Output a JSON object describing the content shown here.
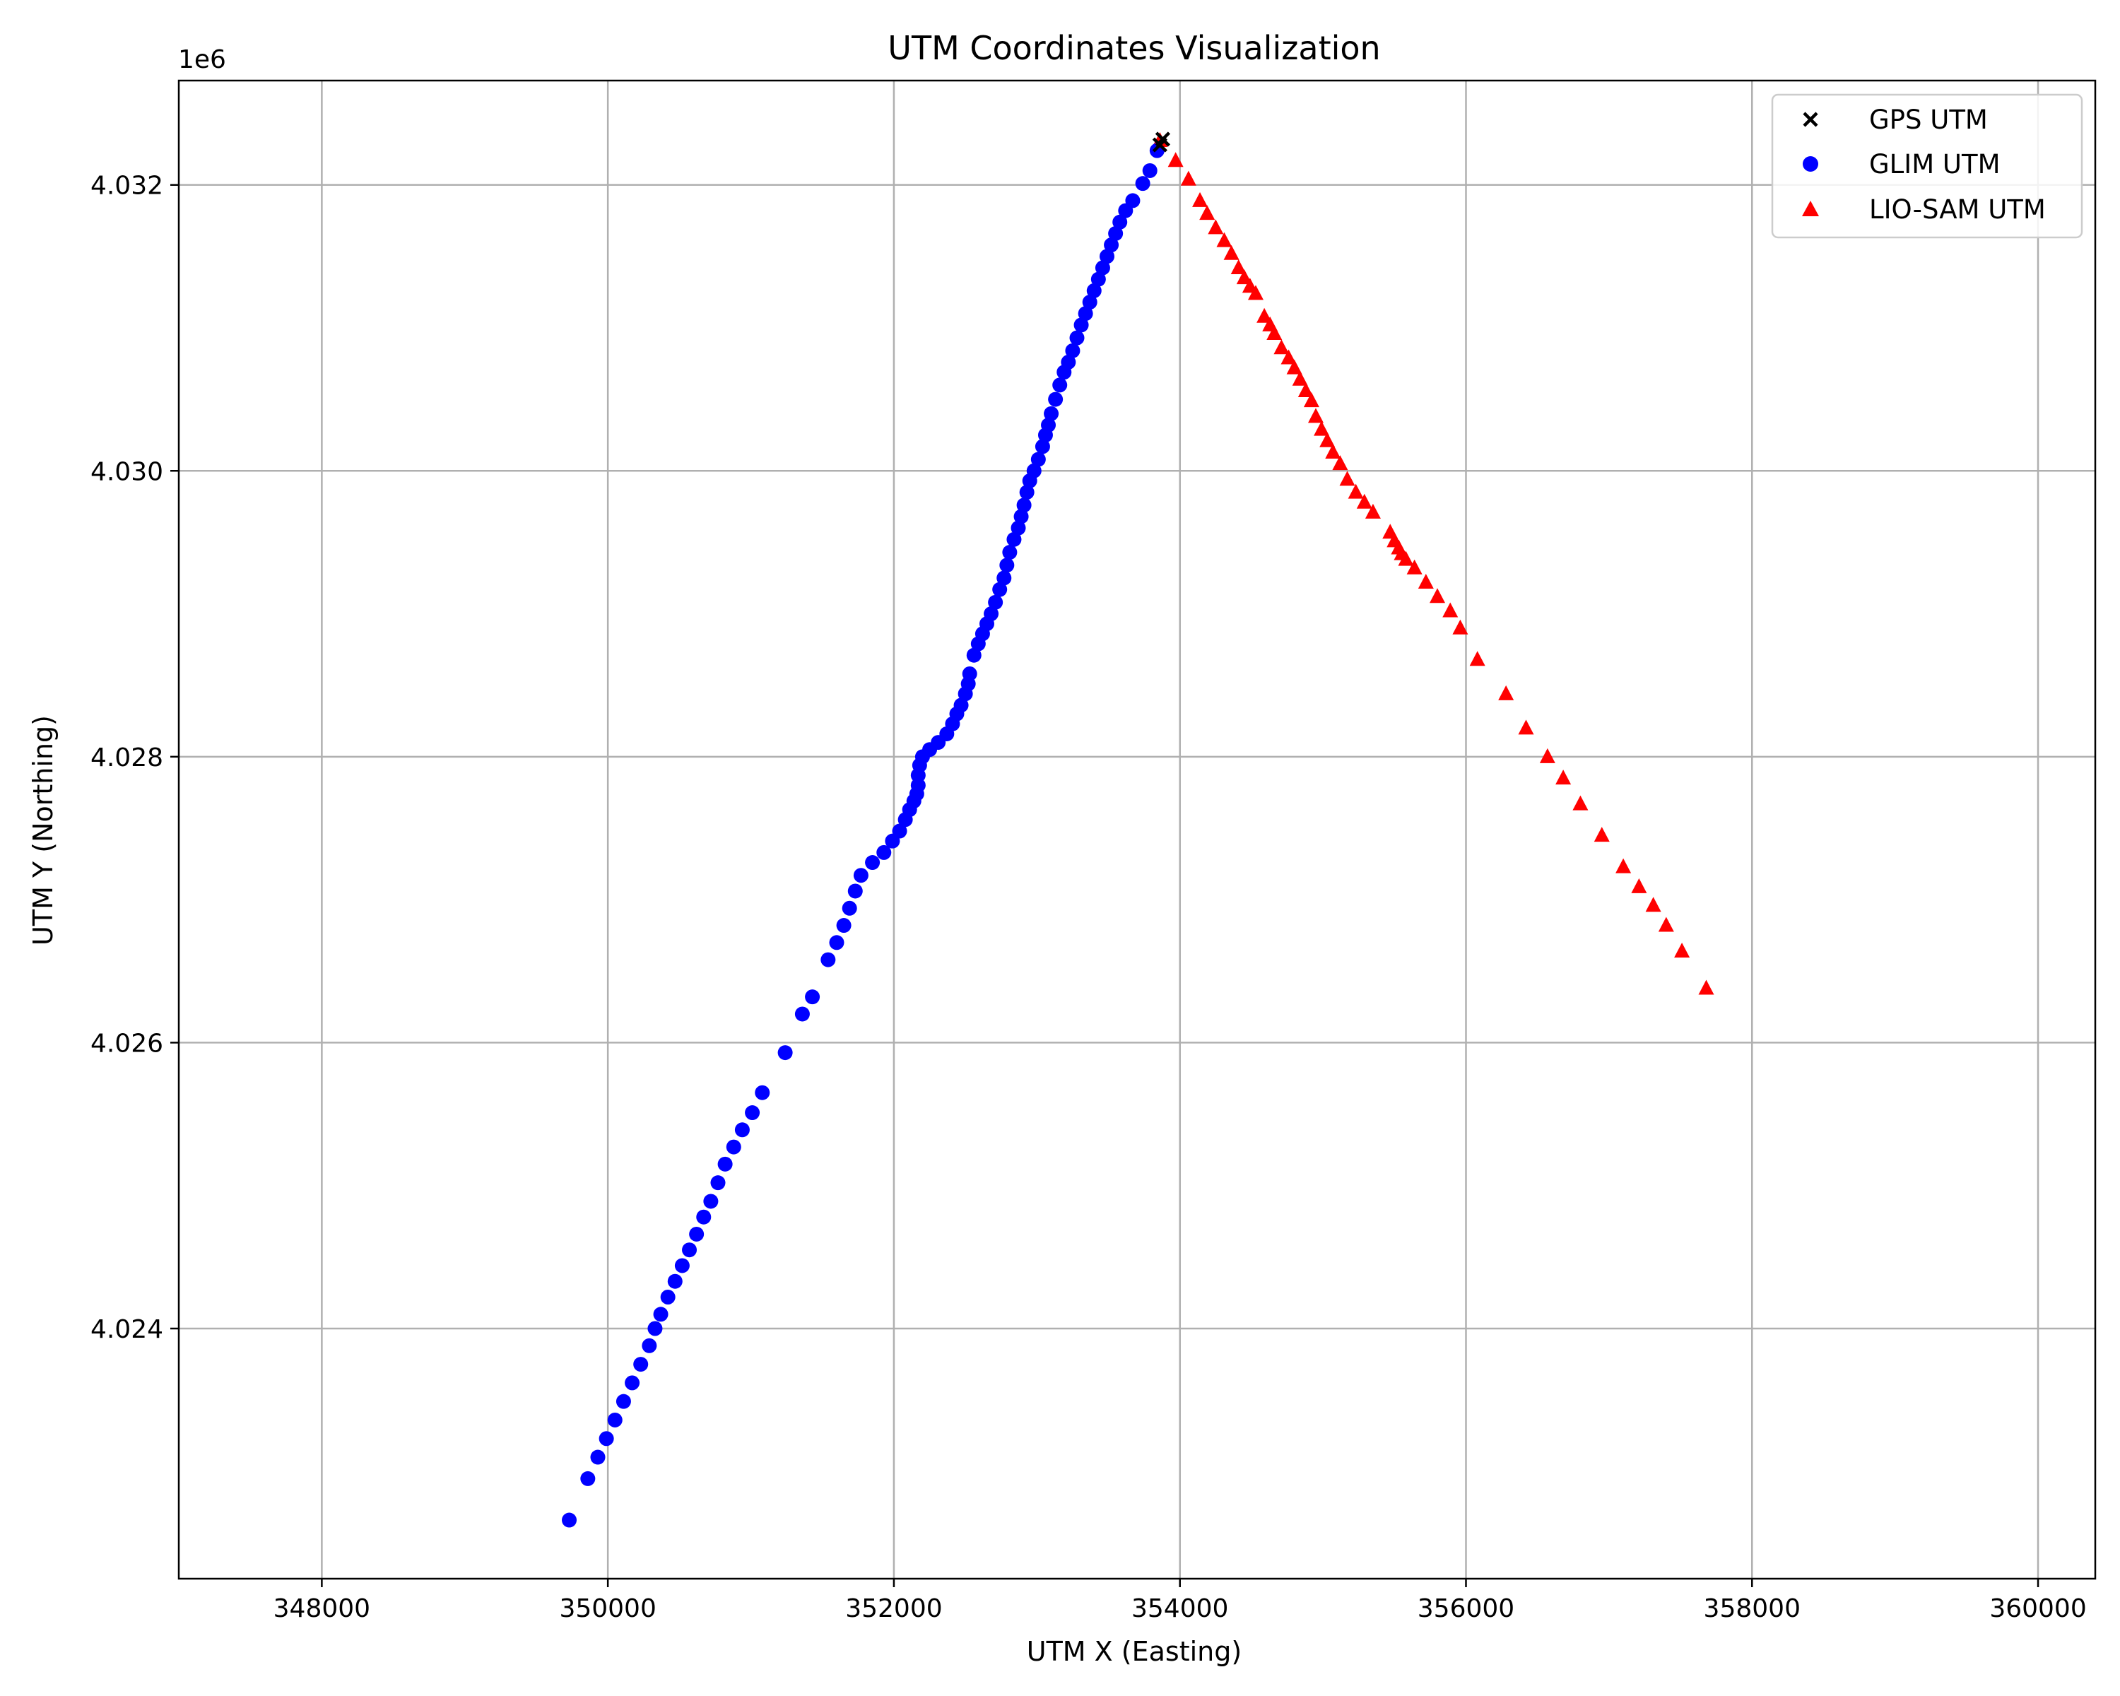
{
  "chart_data": {
    "type": "scatter",
    "title": "UTM Coordinates Visualization",
    "xlabel": "UTM X (Easting)",
    "ylabel": "UTM Y (Northing)",
    "y_offset_label": "1e6",
    "xlim": [
      347000,
      360400
    ],
    "ylim": [
      4022250,
      4032730
    ],
    "xticks": [
      348000,
      350000,
      352000,
      354000,
      356000,
      358000,
      360000
    ],
    "xtick_labels": [
      "348000",
      "350000",
      "352000",
      "354000",
      "356000",
      "358000",
      "360000"
    ],
    "yticks": [
      4024000,
      4026000,
      4028000,
      4030000,
      4032000
    ],
    "ytick_labels": [
      "4.024",
      "4.026",
      "4.028",
      "4.030",
      "4.032"
    ],
    "grid": true,
    "legend_position": "top-right",
    "series": [
      {
        "name": "GPS UTM",
        "marker": "x",
        "color": "#000000",
        "points": [
          [
            353860,
            4032280
          ],
          [
            353880,
            4032320
          ]
        ]
      },
      {
        "name": "GLIM UTM",
        "marker": "circle",
        "color": "#0000ff",
        "points": [
          [
            349730,
            4022660
          ],
          [
            349860,
            4022950
          ],
          [
            349930,
            4023100
          ],
          [
            349990,
            4023230
          ],
          [
            350050,
            4023360
          ],
          [
            350110,
            4023490
          ],
          [
            350170,
            4023620
          ],
          [
            350230,
            4023750
          ],
          [
            350290,
            4023880
          ],
          [
            350330,
            4024000
          ],
          [
            350370,
            4024100
          ],
          [
            350420,
            4024220
          ],
          [
            350470,
            4024330
          ],
          [
            350520,
            4024440
          ],
          [
            350570,
            4024550
          ],
          [
            350620,
            4024660
          ],
          [
            350670,
            4024780
          ],
          [
            350720,
            4024890
          ],
          [
            350770,
            4025020
          ],
          [
            350820,
            4025150
          ],
          [
            350880,
            4025270
          ],
          [
            350940,
            4025390
          ],
          [
            351010,
            4025510
          ],
          [
            351080,
            4025650
          ],
          [
            351240,
            4025930
          ],
          [
            351360,
            4026200
          ],
          [
            351430,
            4026320
          ],
          [
            351540,
            4026580
          ],
          [
            351600,
            4026700
          ],
          [
            351650,
            4026820
          ],
          [
            351690,
            4026940
          ],
          [
            351730,
            4027060
          ],
          [
            351770,
            4027170
          ],
          [
            351850,
            4027260
          ],
          [
            351930,
            4027330
          ],
          [
            351990,
            4027410
          ],
          [
            352040,
            4027480
          ],
          [
            352080,
            4027560
          ],
          [
            352110,
            4027630
          ],
          [
            352140,
            4027690
          ],
          [
            352160,
            4027740
          ],
          [
            352170,
            4027800
          ],
          [
            352170,
            4027870
          ],
          [
            352180,
            4027940
          ],
          [
            352200,
            4028000
          ],
          [
            352250,
            4028050
          ],
          [
            352310,
            4028100
          ],
          [
            352370,
            4028160
          ],
          [
            352410,
            4028230
          ],
          [
            352440,
            4028300
          ],
          [
            352470,
            4028360
          ],
          [
            352500,
            4028440
          ],
          [
            352520,
            4028510
          ],
          [
            352530,
            4028580
          ],
          [
            352560,
            4028710
          ],
          [
            352590,
            4028790
          ],
          [
            352620,
            4028860
          ],
          [
            352650,
            4028930
          ],
          [
            352680,
            4029000
          ],
          [
            352710,
            4029080
          ],
          [
            352740,
            4029170
          ],
          [
            352770,
            4029250
          ],
          [
            352790,
            4029340
          ],
          [
            352810,
            4029430
          ],
          [
            352840,
            4029520
          ],
          [
            352870,
            4029600
          ],
          [
            352890,
            4029680
          ],
          [
            352910,
            4029760
          ],
          [
            352930,
            4029850
          ],
          [
            352950,
            4029930
          ],
          [
            352980,
            4030000
          ],
          [
            353010,
            4030080
          ],
          [
            353040,
            4030170
          ],
          [
            353060,
            4030250
          ],
          [
            353080,
            4030320
          ],
          [
            353100,
            4030400
          ],
          [
            353130,
            4030500
          ],
          [
            353160,
            4030600
          ],
          [
            353190,
            4030690
          ],
          [
            353220,
            4030760
          ],
          [
            353250,
            4030840
          ],
          [
            353280,
            4030930
          ],
          [
            353310,
            4031020
          ],
          [
            353340,
            4031100
          ],
          [
            353370,
            4031180
          ],
          [
            353400,
            4031260
          ],
          [
            353430,
            4031340
          ],
          [
            353460,
            4031420
          ],
          [
            353490,
            4031500
          ],
          [
            353520,
            4031580
          ],
          [
            353550,
            4031660
          ],
          [
            353580,
            4031740
          ],
          [
            353620,
            4031820
          ],
          [
            353670,
            4031890
          ],
          [
            353740,
            4032010
          ],
          [
            353790,
            4032100
          ],
          [
            353840,
            4032240
          ]
        ]
      },
      {
        "name": "LIO-SAM UTM",
        "marker": "triangle",
        "color": "#ff0000",
        "points": [
          [
            353860,
            4032310
          ],
          [
            353970,
            4032170
          ],
          [
            354060,
            4032040
          ],
          [
            354140,
            4031890
          ],
          [
            354190,
            4031800
          ],
          [
            354250,
            4031700
          ],
          [
            354310,
            4031610
          ],
          [
            354360,
            4031520
          ],
          [
            354410,
            4031420
          ],
          [
            354450,
            4031350
          ],
          [
            354490,
            4031290
          ],
          [
            354530,
            4031240
          ],
          [
            354590,
            4031080
          ],
          [
            354630,
            4031020
          ],
          [
            354660,
            4030960
          ],
          [
            354710,
            4030860
          ],
          [
            354760,
            4030790
          ],
          [
            354800,
            4030720
          ],
          [
            354840,
            4030640
          ],
          [
            354880,
            4030560
          ],
          [
            354920,
            4030490
          ],
          [
            354950,
            4030380
          ],
          [
            354990,
            4030290
          ],
          [
            355030,
            4030210
          ],
          [
            355070,
            4030130
          ],
          [
            355120,
            4030050
          ],
          [
            355170,
            4029940
          ],
          [
            355230,
            4029850
          ],
          [
            355290,
            4029780
          ],
          [
            355350,
            4029710
          ],
          [
            355470,
            4029570
          ],
          [
            355500,
            4029510
          ],
          [
            355530,
            4029460
          ],
          [
            355550,
            4029420
          ],
          [
            355580,
            4029380
          ],
          [
            355640,
            4029320
          ],
          [
            355720,
            4029220
          ],
          [
            355800,
            4029120
          ],
          [
            355890,
            4029020
          ],
          [
            355960,
            4028900
          ],
          [
            356080,
            4028680
          ],
          [
            356280,
            4028440
          ],
          [
            356420,
            4028200
          ],
          [
            356570,
            4028000
          ],
          [
            356680,
            4027850
          ],
          [
            356800,
            4027670
          ],
          [
            356950,
            4027450
          ],
          [
            357100,
            4027230
          ],
          [
            357210,
            4027090
          ],
          [
            357310,
            4026960
          ],
          [
            357400,
            4026820
          ],
          [
            357510,
            4026640
          ],
          [
            357680,
            4026380
          ]
        ]
      }
    ]
  }
}
